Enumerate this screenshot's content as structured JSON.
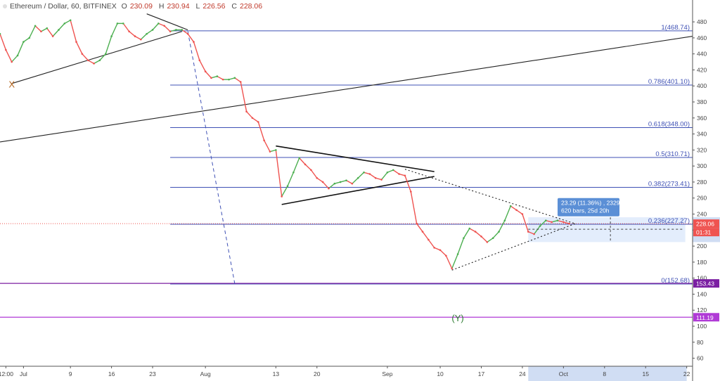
{
  "header": {
    "symbol": "Ethereum / Dollar, 60, BITFINEX",
    "open_label": "O",
    "open": "230.09",
    "high_label": "H",
    "high": "230.94",
    "low_label": "L",
    "low": "226.56",
    "close_label": "C",
    "close": "228.06"
  },
  "chart_data": {
    "type": "line",
    "title": "Ethereum / Dollar, 60, BITFINEX",
    "xlabel": "",
    "ylabel": "",
    "ylim": [
      50,
      495
    ],
    "xlim": [
      "2018-06-27",
      "2018-10-23"
    ],
    "x_tick_labels": [
      {
        "label": "12:00",
        "date": "2018-06-28"
      },
      {
        "label": "Jul",
        "date": "2018-07-01"
      },
      {
        "label": "9",
        "date": "2018-07-09"
      },
      {
        "label": "16",
        "date": "2018-07-16"
      },
      {
        "label": "23",
        "date": "2018-07-23"
      },
      {
        "label": "Aug",
        "date": "2018-08-01"
      },
      {
        "label": "13",
        "date": "2018-08-13"
      },
      {
        "label": "20",
        "date": "2018-08-20"
      },
      {
        "label": "Sep",
        "date": "2018-09-01"
      },
      {
        "label": "10",
        "date": "2018-09-10"
      },
      {
        "label": "17",
        "date": "2018-09-17"
      },
      {
        "label": "24",
        "date": "2018-09-24"
      },
      {
        "label": "Oct",
        "date": "2018-10-01"
      },
      {
        "label": "8",
        "date": "2018-10-08"
      },
      {
        "label": "15",
        "date": "2018-10-15"
      },
      {
        "label": "22",
        "date": "2018-10-22"
      }
    ],
    "y_ticks": [
      480,
      460,
      440,
      420,
      400,
      380,
      360,
      340,
      320,
      300,
      280,
      260,
      240,
      220,
      200,
      180,
      160,
      140,
      120,
      100,
      80,
      60
    ],
    "series": [
      {
        "values": [
          {
            "x": "2018-06-27",
            "y": 465
          },
          {
            "x": "2018-06-28",
            "y": 445
          },
          {
            "x": "2018-06-29",
            "y": 430
          },
          {
            "x": "2018-06-30",
            "y": 438
          },
          {
            "x": "2018-07-01",
            "y": 455
          },
          {
            "x": "2018-07-02",
            "y": 460
          },
          {
            "x": "2018-07-03",
            "y": 475
          },
          {
            "x": "2018-07-04",
            "y": 468
          },
          {
            "x": "2018-07-05",
            "y": 472
          },
          {
            "x": "2018-07-06",
            "y": 462
          },
          {
            "x": "2018-07-07",
            "y": 470
          },
          {
            "x": "2018-07-08",
            "y": 478
          },
          {
            "x": "2018-07-09",
            "y": 482
          },
          {
            "x": "2018-07-10",
            "y": 455
          },
          {
            "x": "2018-07-11",
            "y": 440
          },
          {
            "x": "2018-07-12",
            "y": 432
          },
          {
            "x": "2018-07-13",
            "y": 428
          },
          {
            "x": "2018-07-14",
            "y": 432
          },
          {
            "x": "2018-07-15",
            "y": 440
          },
          {
            "x": "2018-07-16",
            "y": 462
          },
          {
            "x": "2018-07-17",
            "y": 478
          },
          {
            "x": "2018-07-18",
            "y": 478
          },
          {
            "x": "2018-07-19",
            "y": 468
          },
          {
            "x": "2018-07-20",
            "y": 462
          },
          {
            "x": "2018-07-21",
            "y": 458
          },
          {
            "x": "2018-07-22",
            "y": 465
          },
          {
            "x": "2018-07-23",
            "y": 470
          },
          {
            "x": "2018-07-24",
            "y": 478
          },
          {
            "x": "2018-07-25",
            "y": 475
          },
          {
            "x": "2018-07-26",
            "y": 468
          },
          {
            "x": "2018-07-27",
            "y": 470
          },
          {
            "x": "2018-07-28",
            "y": 470
          },
          {
            "x": "2018-07-29",
            "y": 465
          },
          {
            "x": "2018-07-30",
            "y": 455
          },
          {
            "x": "2018-07-31",
            "y": 432
          },
          {
            "x": "2018-08-01",
            "y": 418
          },
          {
            "x": "2018-08-02",
            "y": 410
          },
          {
            "x": "2018-08-03",
            "y": 412
          },
          {
            "x": "2018-08-04",
            "y": 408
          },
          {
            "x": "2018-08-05",
            "y": 408
          },
          {
            "x": "2018-08-06",
            "y": 410
          },
          {
            "x": "2018-08-07",
            "y": 405
          },
          {
            "x": "2018-08-08",
            "y": 368
          },
          {
            "x": "2018-08-09",
            "y": 360
          },
          {
            "x": "2018-08-10",
            "y": 355
          },
          {
            "x": "2018-08-11",
            "y": 332
          },
          {
            "x": "2018-08-12",
            "y": 318
          },
          {
            "x": "2018-08-13",
            "y": 320
          },
          {
            "x": "2018-08-14",
            "y": 262
          },
          {
            "x": "2018-08-15",
            "y": 275
          },
          {
            "x": "2018-08-16",
            "y": 292
          },
          {
            "x": "2018-08-17",
            "y": 310
          },
          {
            "x": "2018-08-18",
            "y": 302
          },
          {
            "x": "2018-08-19",
            "y": 295
          },
          {
            "x": "2018-08-20",
            "y": 285
          },
          {
            "x": "2018-08-21",
            "y": 280
          },
          {
            "x": "2018-08-22",
            "y": 272
          },
          {
            "x": "2018-08-23",
            "y": 278
          },
          {
            "x": "2018-08-24",
            "y": 280
          },
          {
            "x": "2018-08-25",
            "y": 282
          },
          {
            "x": "2018-08-26",
            "y": 278
          },
          {
            "x": "2018-08-27",
            "y": 285
          },
          {
            "x": "2018-08-28",
            "y": 292
          },
          {
            "x": "2018-08-29",
            "y": 290
          },
          {
            "x": "2018-08-30",
            "y": 285
          },
          {
            "x": "2018-08-31",
            "y": 283
          },
          {
            "x": "2018-09-01",
            "y": 292
          },
          {
            "x": "2018-09-02",
            "y": 295
          },
          {
            "x": "2018-09-03",
            "y": 290
          },
          {
            "x": "2018-09-04",
            "y": 288
          },
          {
            "x": "2018-09-05",
            "y": 268
          },
          {
            "x": "2018-09-06",
            "y": 228
          },
          {
            "x": "2018-09-07",
            "y": 218
          },
          {
            "x": "2018-09-08",
            "y": 208
          },
          {
            "x": "2018-09-09",
            "y": 198
          },
          {
            "x": "2018-09-10",
            "y": 195
          },
          {
            "x": "2018-09-11",
            "y": 188
          },
          {
            "x": "2018-09-12",
            "y": 172
          },
          {
            "x": "2018-09-13",
            "y": 190
          },
          {
            "x": "2018-09-14",
            "y": 210
          },
          {
            "x": "2018-09-15",
            "y": 222
          },
          {
            "x": "2018-09-16",
            "y": 218
          },
          {
            "x": "2018-09-17",
            "y": 212
          },
          {
            "x": "2018-09-18",
            "y": 205
          },
          {
            "x": "2018-09-19",
            "y": 210
          },
          {
            "x": "2018-09-20",
            "y": 218
          },
          {
            "x": "2018-09-21",
            "y": 232
          },
          {
            "x": "2018-09-22",
            "y": 250
          },
          {
            "x": "2018-09-23",
            "y": 245
          },
          {
            "x": "2018-09-24",
            "y": 240
          },
          {
            "x": "2018-09-25",
            "y": 218
          },
          {
            "x": "2018-09-26",
            "y": 215
          },
          {
            "x": "2018-09-27",
            "y": 225
          },
          {
            "x": "2018-09-28",
            "y": 232
          },
          {
            "x": "2018-09-29",
            "y": 230
          },
          {
            "x": "2018-09-30",
            "y": 232
          },
          {
            "x": "2018-10-01",
            "y": 230
          },
          {
            "x": "2018-10-02",
            "y": 228
          }
        ]
      }
    ],
    "fibonacci": [
      {
        "label": "1(468.74)",
        "value": 468.74
      },
      {
        "label": "0.786(401.10)",
        "value": 401.1
      },
      {
        "label": "0.618(348.00)",
        "value": 348.0
      },
      {
        "label": "0.5(310.71)",
        "value": 310.71
      },
      {
        "label": "0.382(273.41)",
        "value": 273.41
      },
      {
        "label": "0.236(227.27)",
        "value": 227.27
      },
      {
        "label": "0(152.68)",
        "value": 152.68
      }
    ],
    "horizontal_lines": [
      {
        "label": "153.43",
        "value": 153.43,
        "color": "#7b1fa2"
      },
      {
        "label": "111.19",
        "value": 111.19,
        "color": "#b03ad6"
      }
    ],
    "last_price": {
      "label": "228.06",
      "value": 228.06,
      "countdown": "01:31"
    },
    "wave_labels": [
      {
        "text": "X",
        "date": "2018-06-29",
        "value": 398
      },
      {
        "text": "(Y)",
        "date": "2018-09-13",
        "value": 106
      }
    ],
    "measure_tooltip": {
      "line1": "23.29 (11.36%) , 2329",
      "line2": "620 bars, 25d 20h"
    },
    "colors": {
      "fib": "#3f51b5",
      "up": "#4caf50",
      "down": "#ef5350",
      "price_tag": "#ef5350",
      "countdown_tag": "#ef5350",
      "purple": "#7b1fa2",
      "violet": "#b03ad6",
      "tooltip_bg": "#5b8fd6",
      "range_fill": "#dce8fb",
      "axis_highlight": "#d0ddf3"
    },
    "grid": false,
    "legend": "none"
  }
}
